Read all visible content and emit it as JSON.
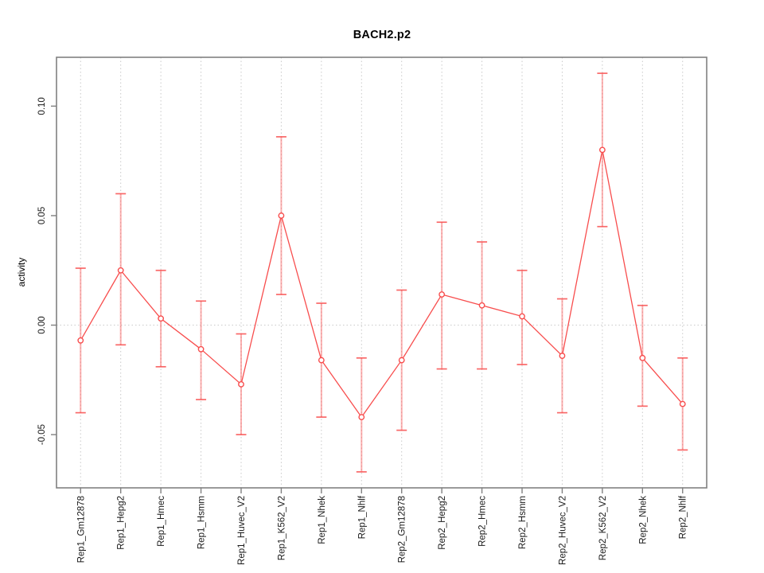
{
  "chart_data": {
    "type": "line",
    "title": "BACH2.p2",
    "xlabel": "",
    "ylabel": "activity",
    "categories": [
      "Rep1_Gm12878",
      "Rep1_Hepg2",
      "Rep1_Hmec",
      "Rep1_Hsmm",
      "Rep1_Huvec_V2",
      "Rep1_K562_V2",
      "Rep1_Nhek",
      "Rep1_Nhlf",
      "Rep2_Gm12878",
      "Rep2_Hepg2",
      "Rep2_Hmec",
      "Rep2_Hsmm",
      "Rep2_Huvec_V2",
      "Rep2_K562_V2",
      "Rep2_Nhek",
      "Rep2_Nhlf"
    ],
    "series": [
      {
        "name": "activity",
        "values": [
          -0.007,
          0.025,
          0.003,
          -0.011,
          -0.027,
          0.05,
          -0.016,
          -0.042,
          -0.016,
          0.014,
          0.009,
          0.004,
          -0.014,
          0.08,
          -0.015,
          -0.036
        ],
        "lower": [
          -0.04,
          -0.009,
          -0.019,
          -0.034,
          -0.05,
          0.014,
          -0.042,
          -0.067,
          -0.048,
          -0.02,
          -0.02,
          -0.018,
          -0.04,
          0.045,
          -0.037,
          -0.057
        ],
        "upper": [
          0.026,
          0.06,
          0.025,
          0.011,
          -0.004,
          0.086,
          0.01,
          -0.015,
          0.016,
          0.047,
          0.038,
          0.025,
          0.012,
          0.115,
          0.009,
          -0.015
        ]
      }
    ],
    "ylim": [
      -0.0743,
      0.1223
    ],
    "yticks": [
      -0.05,
      0.0,
      0.05,
      0.1
    ],
    "ytick_labels": [
      "-0.05",
      "0.00",
      "0.05",
      "0.10"
    ],
    "grid": "dotted vertical gridline at each category; dotted horizontal line at y=0; no legend",
    "legend": "none",
    "marker": "open-circle",
    "colors": {
      "line": "#f84d4d",
      "marker": "#f84d4d",
      "error_bar": "rgba(250,80,80,0.45)",
      "error_cap": "rgba(248,77,77,0.85)",
      "grid": "#c9c9c9",
      "axis": "#808080",
      "text": "#1a1a1a",
      "background": "#ffffff"
    }
  }
}
